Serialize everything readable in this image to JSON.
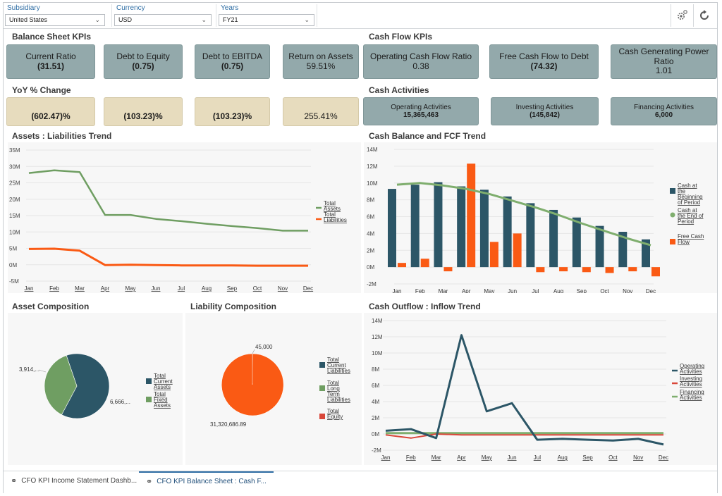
{
  "filters": [
    {
      "label": "Subsidiary",
      "value": "United States"
    },
    {
      "label": "Currency",
      "value": "USD"
    },
    {
      "label": "Years",
      "value": "FY21"
    }
  ],
  "toolbar": {
    "settings_icon": "gear-icon",
    "refresh_icon": "refresh-icon"
  },
  "sections": {
    "balance_sheet_kpis": "Balance Sheet KPIs",
    "cash_flow_kpis": "Cash Flow KPIs",
    "yoy": "YoY % Change",
    "cash_activities": "Cash Activities",
    "assets_liab_trend": "Assets : Liabilities Trend",
    "cash_balance_trend": "Cash Balance and FCF Trend",
    "asset_comp": "Asset Composition",
    "liab_comp": "Liability Composition",
    "cash_outflow_trend": "Cash Outflow : Inflow Trend"
  },
  "balance_kpis": [
    {
      "label": "Current Ratio",
      "value": "(31.51)"
    },
    {
      "label": "Debt to Equity",
      "value": "(0.75)"
    },
    {
      "label": "Debt to EBITDA",
      "value": "(0.75)"
    },
    {
      "label": "Return on Assets",
      "value": "59.51%"
    }
  ],
  "cashflow_kpis": [
    {
      "label": "Operating Cash Flow Ratio",
      "value": "0.38"
    },
    {
      "label": "Free Cash Flow to Debt",
      "value": "(74.32)"
    },
    {
      "label": "Cash Generating Power Ratio",
      "value": "1.01"
    }
  ],
  "yoy_values": [
    "(602.47)%",
    "(103.23)%",
    "(103.23)%",
    "255.41%"
  ],
  "cash_activities": [
    {
      "label": "Operating Activities",
      "value": "15,365,463"
    },
    {
      "label": "Investing Activities",
      "value": "(145,842)"
    },
    {
      "label": "Financing Activities",
      "value": "6,000"
    }
  ],
  "colors": {
    "green": "#6f9e62",
    "orange": "#fa5a14",
    "teal": "#2c5667",
    "red": "#d9473a",
    "kpi": "#93a9ab",
    "yoy": "#e7dcbe"
  },
  "chart_data": [
    {
      "type": "line",
      "title": "Assets : Liabilities Trend",
      "categories": [
        "Jan",
        "Feb",
        "Mar",
        "Apr",
        "May",
        "Jun",
        "Jul",
        "Aug",
        "Sep",
        "Oct",
        "Nov",
        "Dec"
      ],
      "y_ticks": [
        "35M",
        "30M",
        "25M",
        "20M",
        "15M",
        "10M",
        "5M",
        "0M",
        "-5M"
      ],
      "ylim": [
        -5,
        35
      ],
      "series": [
        {
          "name": "Total Assets",
          "values": [
            28,
            28.8,
            28.3,
            15.2,
            15.2,
            14,
            13.3,
            12.5,
            11.8,
            11.2,
            10.4,
            10.4
          ]
        },
        {
          "name": "Total Liabilities",
          "values": [
            4.8,
            4.9,
            4.3,
            -0.1,
            0,
            -0.1,
            -0.2,
            -0.2,
            -0.2,
            -0.3,
            -0.3,
            -0.3
          ]
        }
      ],
      "legend": "right"
    },
    {
      "type": "bar",
      "title": "Cash Balance and FCF Trend",
      "categories": [
        "Jan",
        "Feb",
        "Mar",
        "Apr",
        "May",
        "Jun",
        "Jul",
        "Aug",
        "Sep",
        "Oct",
        "Nov",
        "Dec"
      ],
      "y_ticks": [
        "14M",
        "12M",
        "10M",
        "8M",
        "6M",
        "4M",
        "2M",
        "0M",
        "-2M"
      ],
      "ylim": [
        -2,
        14
      ],
      "series": [
        {
          "name": "Cash at the Beginning of Period",
          "values": [
            9.3,
            9.8,
            10.1,
            9.6,
            9.2,
            8.4,
            7.6,
            6.8,
            5.9,
            4.9,
            4.2,
            3.3
          ]
        },
        {
          "name": "Cash at the End of Period",
          "values": [
            9.8,
            10,
            9.7,
            9.3,
            8.7,
            7.9,
            7.1,
            6.2,
            5.2,
            4.3,
            3.4,
            2.6
          ]
        },
        {
          "name": "Free Cash Flow",
          "values": [
            0.5,
            1,
            -0.5,
            12.3,
            3,
            4,
            -0.6,
            -0.5,
            -0.6,
            -0.7,
            -0.5,
            -1.1
          ]
        }
      ],
      "legend": "right"
    },
    {
      "type": "pie",
      "title": "Asset Composition",
      "series": [
        {
          "name": "Total Current Assets",
          "value": 6666,
          "label": "6,666,..."
        },
        {
          "name": "Total Fixed Assets",
          "value": 3914,
          "label": "3,914,..."
        }
      ]
    },
    {
      "type": "pie",
      "title": "Liability Composition",
      "series": [
        {
          "name": "Total Current Liabilities",
          "value": 45000,
          "label": "45,000"
        },
        {
          "name": "Total Long Term Liabilities",
          "value": 31320686.89,
          "label": "31,320,686.89"
        },
        {
          "name": "Total Equity",
          "value": 0,
          "label": ""
        }
      ]
    },
    {
      "type": "line",
      "title": "Cash Outflow : Inflow Trend",
      "categories": [
        "Jan",
        "Feb",
        "Mar",
        "Apr",
        "May",
        "Jun",
        "Jul",
        "Aug",
        "Sep",
        "Oct",
        "Nov",
        "Dec"
      ],
      "y_ticks": [
        "14M",
        "12M",
        "10M",
        "8M",
        "6M",
        "4M",
        "2M",
        "0M",
        "-2M"
      ],
      "ylim": [
        -2,
        14
      ],
      "series": [
        {
          "name": "Operating Activities",
          "values": [
            0.4,
            0.6,
            -0.5,
            12.2,
            2.8,
            3.8,
            -0.7,
            -0.6,
            -0.7,
            -0.8,
            -0.6,
            -1.3
          ]
        },
        {
          "name": "Investing Activities",
          "values": [
            -0.1,
            -0.5,
            0,
            -0.1,
            -0.1,
            -0.1,
            -0.1,
            -0.1,
            -0.1,
            -0.1,
            -0.1,
            -0.1
          ]
        },
        {
          "name": "Financing Activities",
          "values": [
            0.1,
            0.1,
            0.1,
            0.1,
            0.1,
            0.1,
            0.1,
            0.1,
            0.1,
            0.1,
            0.1,
            0.1
          ]
        }
      ],
      "legend": "right"
    }
  ],
  "tabs": [
    {
      "label": "CFO KPI Income Statement Dashb...",
      "active": false
    },
    {
      "label": "CFO KPI Balance Sheet : Cash F...",
      "active": true
    }
  ]
}
